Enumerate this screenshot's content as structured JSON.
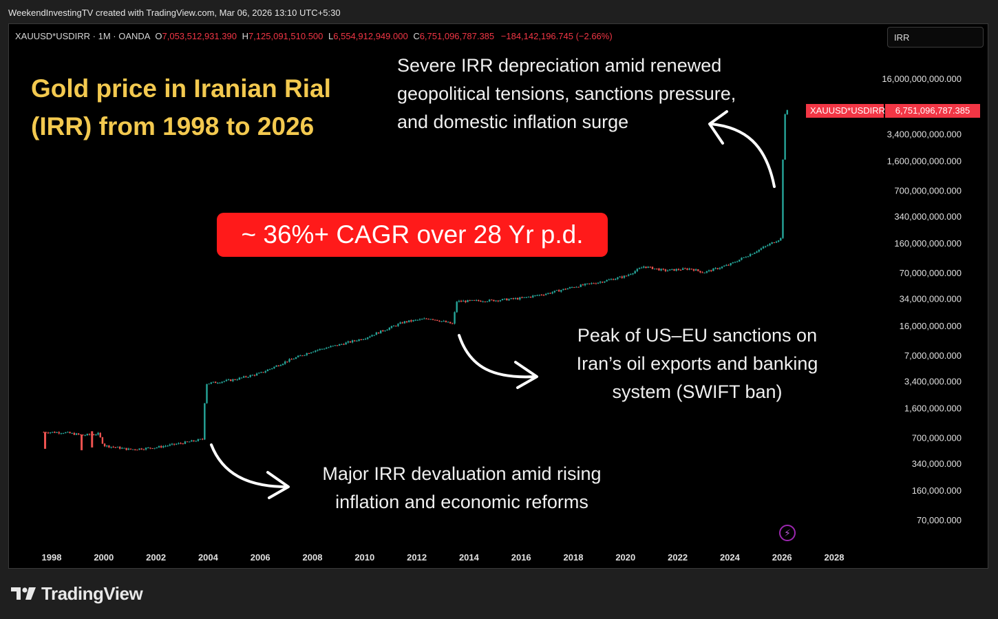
{
  "header": {
    "credit": "WeekendInvestingTV created with TradingView.com, Mar 06, 2026 13:10 UTC+5:30"
  },
  "legend": {
    "symbol": "XAUUSD*USDIRR · 1M · OANDA",
    "o_label": "O",
    "o_value": "7,053,512,931.390",
    "h_label": "H",
    "h_value": "7,125,091,510.500",
    "l_label": "L",
    "l_value": "6,554,912,949.000",
    "c_label": "C",
    "c_value": "6,751,096,787.385",
    "change": "−184,142,196.745 (−2.66%)"
  },
  "currency": "IRR",
  "title": {
    "line1": "Gold price in Iranian Rial",
    "line2": "(IRR) from 1998 to 2026"
  },
  "badge": "~ 36%+ CAGR over 28 Yr p.d.",
  "annotations": {
    "top": [
      "Severe IRR depreciation amid renewed",
      "geopolitical tensions, sanctions pressure,",
      "and domestic inflation surge"
    ],
    "middle": [
      "Peak of US–EU sanctions on",
      "Iran’s oil exports and banking",
      "system (SWIFT ban)"
    ],
    "bottom": [
      "Major IRR devaluation amid rising",
      "inflation and economic reforms"
    ]
  },
  "price_tag": {
    "symbol": "XAUUSD*USDIRR",
    "value": "6,751,096,787.385"
  },
  "brand": "TradingView",
  "colors": {
    "up": "#26a69a",
    "down": "#ef5350",
    "accent": "#f23645",
    "title": "#f3c94f"
  },
  "chart_data": {
    "type": "candlestick",
    "title": "Gold price in Iranian Rial (IRR) from 1998 to 2026",
    "series_name": "XAUUSD*USDIRR",
    "interval": "1M",
    "scale": "log",
    "x_ticks": [
      "1998",
      "2000",
      "2002",
      "2004",
      "2006",
      "2008",
      "2010",
      "2012",
      "2014",
      "2016",
      "2018",
      "2020",
      "2022",
      "2024",
      "2026",
      "2028"
    ],
    "y_ticks": [
      {
        "label": "70,000.000",
        "value": 70000
      },
      {
        "label": "160,000.000",
        "value": 160000
      },
      {
        "label": "340,000.000",
        "value": 340000
      },
      {
        "label": "700,000.000",
        "value": 700000
      },
      {
        "label": "1,600,000.000",
        "value": 1600000
      },
      {
        "label": "3,400,000.000",
        "value": 3400000
      },
      {
        "label": "7,000,000.000",
        "value": 7000000
      },
      {
        "label": "16,000,000.000",
        "value": 16000000
      },
      {
        "label": "34,000,000.000",
        "value": 34000000
      },
      {
        "label": "70,000,000.000",
        "value": 70000000
      },
      {
        "label": "160,000,000.000",
        "value": 160000000
      },
      {
        "label": "340,000,000.000",
        "value": 340000000
      },
      {
        "label": "700,000,000.000",
        "value": 700000000
      },
      {
        "label": "1,600,000,000.000",
        "value": 1600000000
      },
      {
        "label": "3,400,000,000.000",
        "value": 3400000000
      },
      {
        "label": "16,000,000,000.000",
        "value": 16000000000
      }
    ],
    "price_path": [
      {
        "t": 1997.7,
        "v": 830000
      },
      {
        "t": 1998.5,
        "v": 820000
      },
      {
        "t": 1999.2,
        "v": 760000
      },
      {
        "t": 1999.8,
        "v": 790000
      },
      {
        "t": 2000.0,
        "v": 570000
      },
      {
        "t": 2001.0,
        "v": 510000
      },
      {
        "t": 2002.0,
        "v": 540000
      },
      {
        "t": 2003.0,
        "v": 610000
      },
      {
        "t": 2003.8,
        "v": 680000
      },
      {
        "t": 2003.9,
        "v": 3200000
      },
      {
        "t": 2005.0,
        "v": 3600000
      },
      {
        "t": 2006.0,
        "v": 4300000
      },
      {
        "t": 2007.0,
        "v": 6000000
      },
      {
        "t": 2008.0,
        "v": 8000000
      },
      {
        "t": 2009.0,
        "v": 9500000
      },
      {
        "t": 2010.0,
        "v": 11500000
      },
      {
        "t": 2011.5,
        "v": 18000000
      },
      {
        "t": 2012.5,
        "v": 20000000
      },
      {
        "t": 2013.4,
        "v": 17000000
      },
      {
        "t": 2013.5,
        "v": 32000000
      },
      {
        "t": 2015.0,
        "v": 33000000
      },
      {
        "t": 2016.0,
        "v": 35000000
      },
      {
        "t": 2017.0,
        "v": 40000000
      },
      {
        "t": 2018.0,
        "v": 48000000
      },
      {
        "t": 2019.0,
        "v": 55000000
      },
      {
        "t": 2020.0,
        "v": 65000000
      },
      {
        "t": 2020.7,
        "v": 85000000
      },
      {
        "t": 2021.5,
        "v": 76000000
      },
      {
        "t": 2022.5,
        "v": 80000000
      },
      {
        "t": 2023.0,
        "v": 72000000
      },
      {
        "t": 2024.0,
        "v": 90000000
      },
      {
        "t": 2025.0,
        "v": 130000000
      },
      {
        "t": 2026.0,
        "v": 190000000
      },
      {
        "t": 2026.05,
        "v": 5200000000
      },
      {
        "t": 2026.2,
        "v": 6751096787
      }
    ],
    "last_close": 6751096787.385
  }
}
